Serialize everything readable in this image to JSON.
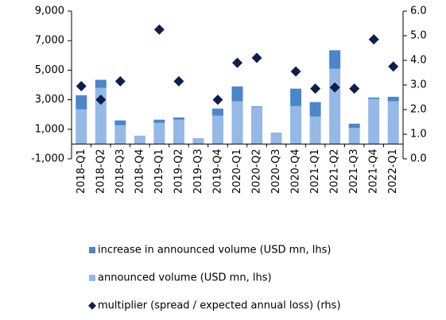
{
  "chart_data": {
    "type": "bar",
    "categories": [
      "2018-Q1",
      "2018-Q2",
      "2018-Q3",
      "2018-Q4",
      "2019-Q1",
      "2019-Q2",
      "2019-Q3",
      "2019-Q4",
      "2020-Q1",
      "2020-Q2",
      "2020-Q3",
      "2020-Q4",
      "2021-Q1",
      "2021-Q2",
      "2021-Q3",
      "2021-Q4",
      "2022-Q1"
    ],
    "series": [
      {
        "name": "increase in announced volume (USD mn, lhs)",
        "type": "bar",
        "color": "#4a86c8",
        "values": [
          950,
          550,
          330,
          0,
          220,
          150,
          0,
          480,
          1000,
          50,
          0,
          1180,
          980,
          1250,
          280,
          100,
          300
        ]
      },
      {
        "name": "announced volume (USD mn, lhs)",
        "type": "bar",
        "color": "#95b9e6",
        "values": [
          2350,
          3800,
          1270,
          570,
          1430,
          1650,
          400,
          1920,
          2900,
          2500,
          780,
          2570,
          1860,
          5100,
          1100,
          3050,
          2900
        ]
      },
      {
        "name": "multiplier (spread / expected annual loss) (rhs)",
        "type": "scatter",
        "axis": "y2",
        "color": "#0d1f4f",
        "values": [
          2.95,
          2.4,
          3.15,
          null,
          5.25,
          3.15,
          null,
          2.4,
          3.9,
          4.1,
          null,
          3.55,
          2.85,
          2.9,
          2.85,
          4.85,
          3.75
        ]
      }
    ],
    "ylim": [
      -1000,
      9000
    ],
    "yticks": [
      {
        "value": -1000,
        "label": "-1,000"
      },
      {
        "value": 1000,
        "label": "1,000"
      },
      {
        "value": 3000,
        "label": "3,000"
      },
      {
        "value": 5000,
        "label": "5,000"
      },
      {
        "value": 7000,
        "label": "7,000"
      },
      {
        "value": 9000,
        "label": "9,000"
      }
    ],
    "y2lim": [
      0,
      6
    ],
    "y2ticks": [
      {
        "value": 0,
        "label": "0.0"
      },
      {
        "value": 1,
        "label": "1.0"
      },
      {
        "value": 2,
        "label": "2.0"
      },
      {
        "value": 3,
        "label": "3.0"
      },
      {
        "value": 4,
        "label": "4.0"
      },
      {
        "value": 5,
        "label": "5.0"
      },
      {
        "value": 6,
        "label": "6.0"
      }
    ],
    "grid": false,
    "legend": "bottom"
  }
}
